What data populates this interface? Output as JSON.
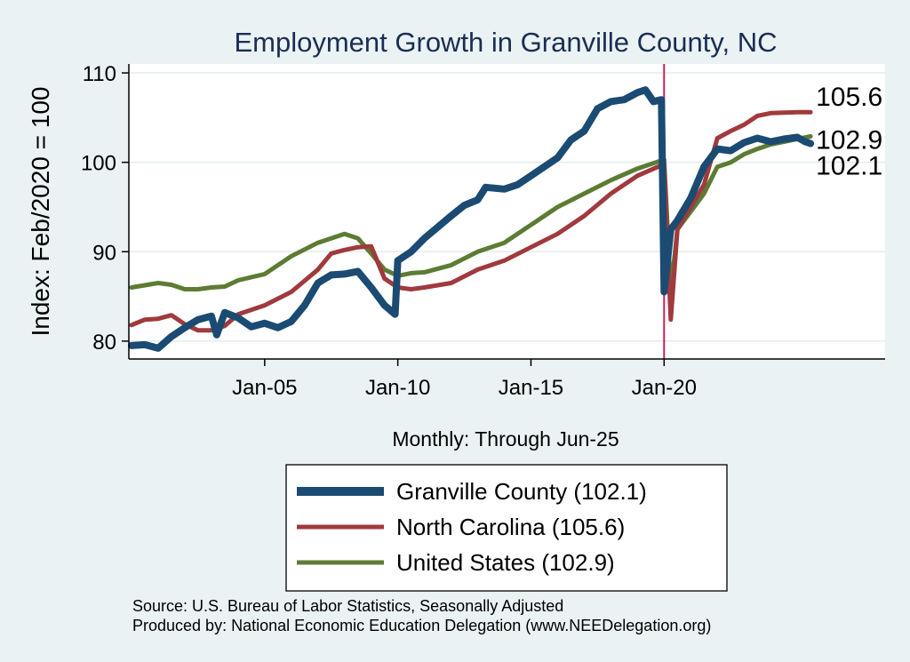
{
  "chart_data": {
    "type": "line",
    "title": "Employment Growth in Granville  County, NC",
    "xlabel": "Monthly: Through Jun-25",
    "ylabel": "Index: Feb/2020 = 100",
    "ylim": [
      78,
      111
    ],
    "xlim": [
      1999.9,
      2028.3
    ],
    "yticks": [
      80,
      90,
      100,
      110
    ],
    "ytick_labels": [
      "80",
      "90",
      "100",
      "110"
    ],
    "xticks": [
      2005,
      2010,
      2015,
      2020
    ],
    "xtick_labels": [
      "Jan-05",
      "Jan-10",
      "Jan-15",
      "Jan-20"
    ],
    "vline_x": 2020.0,
    "grid": "horizontal",
    "series": [
      {
        "name": "Granville  County",
        "legend": "Granville  County (102.1)",
        "end_label": "102.1",
        "color": "#1b4b72",
        "points": [
          [
            2000.0,
            79.5
          ],
          [
            2000.5,
            79.6
          ],
          [
            2001.0,
            79.2
          ],
          [
            2001.5,
            80.5
          ],
          [
            2002.0,
            81.5
          ],
          [
            2002.5,
            82.4
          ],
          [
            2003.0,
            82.8
          ],
          [
            2003.2,
            80.7
          ],
          [
            2003.5,
            83.2
          ],
          [
            2004.0,
            82.6
          ],
          [
            2004.5,
            81.6
          ],
          [
            2005.0,
            82.0
          ],
          [
            2005.5,
            81.5
          ],
          [
            2006.0,
            82.2
          ],
          [
            2006.5,
            84.0
          ],
          [
            2007.0,
            86.5
          ],
          [
            2007.5,
            87.4
          ],
          [
            2008.0,
            87.5
          ],
          [
            2008.5,
            87.8
          ],
          [
            2009.0,
            86.0
          ],
          [
            2009.5,
            84.0
          ],
          [
            2009.9,
            83.0
          ],
          [
            2010.0,
            89.0
          ],
          [
            2010.5,
            90.0
          ],
          [
            2011.0,
            91.5
          ],
          [
            2012.0,
            94.0
          ],
          [
            2012.5,
            95.2
          ],
          [
            2013.0,
            95.8
          ],
          [
            2013.3,
            97.2
          ],
          [
            2014.0,
            97.0
          ],
          [
            2014.5,
            97.5
          ],
          [
            2015.0,
            98.5
          ],
          [
            2016.0,
            100.5
          ],
          [
            2016.5,
            102.5
          ],
          [
            2017.0,
            103.5
          ],
          [
            2017.5,
            106.0
          ],
          [
            2018.0,
            106.8
          ],
          [
            2018.5,
            107.0
          ],
          [
            2019.0,
            107.8
          ],
          [
            2019.3,
            108.1
          ],
          [
            2019.6,
            106.8
          ],
          [
            2019.9,
            107.0
          ],
          [
            2020.0,
            85.5
          ],
          [
            2020.25,
            92.5
          ],
          [
            2020.5,
            93.5
          ],
          [
            2021.0,
            96.0
          ],
          [
            2021.5,
            99.5
          ],
          [
            2022.0,
            101.5
          ],
          [
            2022.5,
            101.3
          ],
          [
            2023.0,
            102.2
          ],
          [
            2023.5,
            102.7
          ],
          [
            2024.0,
            102.3
          ],
          [
            2024.5,
            102.6
          ],
          [
            2025.0,
            102.8
          ],
          [
            2025.3,
            102.3
          ],
          [
            2025.5,
            102.1
          ]
        ]
      },
      {
        "name": "North Carolina",
        "legend": "North Carolina (105.6)",
        "end_label": "105.6",
        "color": "#a03a3d",
        "points": [
          [
            2000.0,
            81.8
          ],
          [
            2000.5,
            82.4
          ],
          [
            2001.0,
            82.5
          ],
          [
            2001.5,
            82.9
          ],
          [
            2002.0,
            81.9
          ],
          [
            2002.5,
            81.2
          ],
          [
            2003.0,
            81.2
          ],
          [
            2003.5,
            81.7
          ],
          [
            2004.0,
            83.0
          ],
          [
            2005.0,
            84.0
          ],
          [
            2006.0,
            85.5
          ],
          [
            2007.0,
            88.0
          ],
          [
            2007.5,
            89.8
          ],
          [
            2008.0,
            90.2
          ],
          [
            2008.5,
            90.5
          ],
          [
            2009.0,
            90.6
          ],
          [
            2009.5,
            87.0
          ],
          [
            2010.0,
            86.0
          ],
          [
            2010.5,
            85.8
          ],
          [
            2011.0,
            86.0
          ],
          [
            2012.0,
            86.5
          ],
          [
            2013.0,
            88.0
          ],
          [
            2014.0,
            89.0
          ],
          [
            2015.0,
            90.5
          ],
          [
            2016.0,
            92.0
          ],
          [
            2017.0,
            94.0
          ],
          [
            2018.0,
            96.5
          ],
          [
            2019.0,
            98.5
          ],
          [
            2020.0,
            99.8
          ],
          [
            2020.25,
            82.4
          ],
          [
            2020.5,
            92.5
          ],
          [
            2021.0,
            95.0
          ],
          [
            2021.5,
            97.5
          ],
          [
            2022.0,
            102.7
          ],
          [
            2022.5,
            103.5
          ],
          [
            2023.0,
            104.2
          ],
          [
            2023.5,
            105.2
          ],
          [
            2024.0,
            105.5
          ],
          [
            2025.0,
            105.6
          ],
          [
            2025.5,
            105.6
          ]
        ]
      },
      {
        "name": "United States",
        "legend": "United States (102.9)",
        "end_label": "102.9",
        "color": "#5c7c33",
        "points": [
          [
            2000.0,
            86.0
          ],
          [
            2001.0,
            86.5
          ],
          [
            2001.5,
            86.3
          ],
          [
            2002.0,
            85.8
          ],
          [
            2002.5,
            85.8
          ],
          [
            2003.0,
            86.0
          ],
          [
            2003.5,
            86.1
          ],
          [
            2004.0,
            86.8
          ],
          [
            2005.0,
            87.5
          ],
          [
            2006.0,
            89.5
          ],
          [
            2007.0,
            91.0
          ],
          [
            2007.5,
            91.5
          ],
          [
            2008.0,
            92.0
          ],
          [
            2008.5,
            91.5
          ],
          [
            2009.0,
            89.8
          ],
          [
            2009.5,
            88.0
          ],
          [
            2010.0,
            87.3
          ],
          [
            2010.5,
            87.6
          ],
          [
            2011.0,
            87.7
          ],
          [
            2012.0,
            88.5
          ],
          [
            2013.0,
            90.0
          ],
          [
            2014.0,
            91.0
          ],
          [
            2015.0,
            93.0
          ],
          [
            2016.0,
            95.0
          ],
          [
            2017.0,
            96.5
          ],
          [
            2018.0,
            98.0
          ],
          [
            2019.0,
            99.3
          ],
          [
            2020.0,
            100.3
          ],
          [
            2020.25,
            85.5
          ],
          [
            2020.5,
            92.5
          ],
          [
            2021.0,
            94.5
          ],
          [
            2021.5,
            96.5
          ],
          [
            2022.0,
            99.5
          ],
          [
            2022.5,
            100.0
          ],
          [
            2023.0,
            100.9
          ],
          [
            2023.5,
            101.5
          ],
          [
            2024.0,
            102.0
          ],
          [
            2024.5,
            102.3
          ],
          [
            2025.0,
            102.6
          ],
          [
            2025.5,
            102.9
          ]
        ]
      }
    ]
  },
  "footer": {
    "source": "Source: U.S. Bureau of Labor Statistics, Seasonally Adjusted",
    "produced_by": "Produced by: National Economic Education Delegation (www.NEEDelegation.org)"
  }
}
